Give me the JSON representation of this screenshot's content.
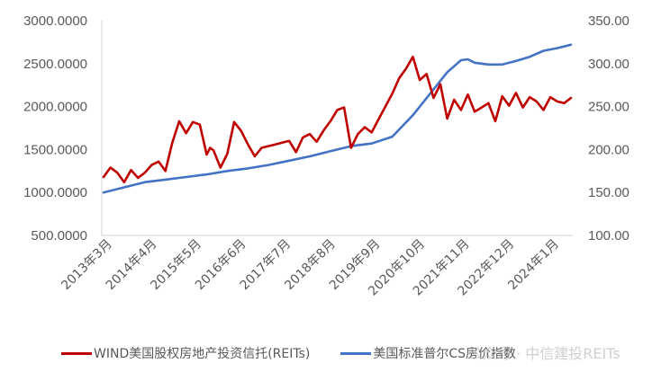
{
  "chart_data": {
    "type": "line",
    "title": "",
    "xlabel": "",
    "ylabel_left": "",
    "ylabel_right": "",
    "grid": false,
    "legend_position": "bottom",
    "x_tick_labels": [
      "2013年3月",
      "2014年4月",
      "2015年5月",
      "2016年6月",
      "2017年7月",
      "2018年8月",
      "2019年9月",
      "2020年10月",
      "2021年11月",
      "2022年12月",
      "2024年1月"
    ],
    "y_left": {
      "range": [
        500,
        3000
      ],
      "ticks": [
        "3000.0000",
        "2500.0000",
        "2000.0000",
        "1500.0000",
        "1000.0000",
        "500.0000"
      ]
    },
    "y_right": {
      "range": [
        100,
        350
      ],
      "ticks": [
        "350.00",
        "300.00",
        "250.00",
        "200.00",
        "150.00",
        "100.00"
      ]
    },
    "series": [
      {
        "name": "WIND美国股权房地产投资信托(REITs)",
        "axis": "left",
        "color": "#C00000",
        "x_month_index": [
          0,
          2,
          4,
          6,
          8,
          10,
          12,
          14,
          16,
          18,
          20,
          22,
          24,
          26,
          28,
          30,
          31,
          32,
          34,
          36,
          38,
          40,
          42,
          44,
          46,
          48,
          50,
          52,
          54,
          56,
          58,
          60,
          62,
          64,
          66,
          68,
          70,
          72,
          74,
          76,
          78,
          80,
          82,
          84,
          86,
          88,
          90,
          92,
          94,
          96,
          98,
          100,
          102,
          104,
          106,
          108,
          110,
          112,
          114,
          116,
          118,
          120,
          122,
          124,
          126,
          128,
          130,
          132,
          134,
          136
        ],
        "values": [
          1180,
          1290,
          1230,
          1120,
          1260,
          1170,
          1230,
          1320,
          1360,
          1250,
          1580,
          1830,
          1690,
          1820,
          1790,
          1440,
          1520,
          1490,
          1290,
          1450,
          1820,
          1720,
          1560,
          1420,
          1520,
          1540,
          1560,
          1580,
          1600,
          1470,
          1640,
          1680,
          1590,
          1720,
          1830,
          1960,
          1990,
          1520,
          1680,
          1760,
          1700,
          1850,
          2000,
          2150,
          2330,
          2440,
          2580,
          2310,
          2380,
          2100,
          2260,
          1860,
          2080,
          1960,
          2140,
          1940,
          1990,
          2040,
          1830,
          2120,
          2010,
          2160,
          1990,
          2110,
          2060,
          1960,
          2110,
          2060,
          2040,
          2100
        ],
        "values_note": "approximate, read from pixels"
      },
      {
        "name": "美国标准普尔CS房价指数",
        "axis": "right",
        "color": "#4472C4",
        "x_month_index": [
          0,
          6,
          12,
          18,
          24,
          30,
          36,
          42,
          48,
          54,
          60,
          66,
          72,
          78,
          84,
          90,
          96,
          100,
          102,
          104,
          106,
          108,
          112,
          116,
          120,
          124,
          128,
          132,
          136
        ],
        "values": [
          150,
          156,
          162,
          165,
          168,
          171,
          175,
          178,
          182,
          187,
          192,
          198,
          204,
          207,
          215,
          240,
          270,
          290,
          297,
          304,
          305,
          301,
          299,
          299,
          303,
          308,
          315,
          318,
          322
        ],
        "values_note": "approximate, read from pixels"
      }
    ]
  },
  "legend": {
    "series1_label": "WIND美国股权房地产投资信托(REITs)",
    "series2_label": "美国标准普尔CS房价指数"
  },
  "watermark": "公众号 · 中信建投REITs"
}
